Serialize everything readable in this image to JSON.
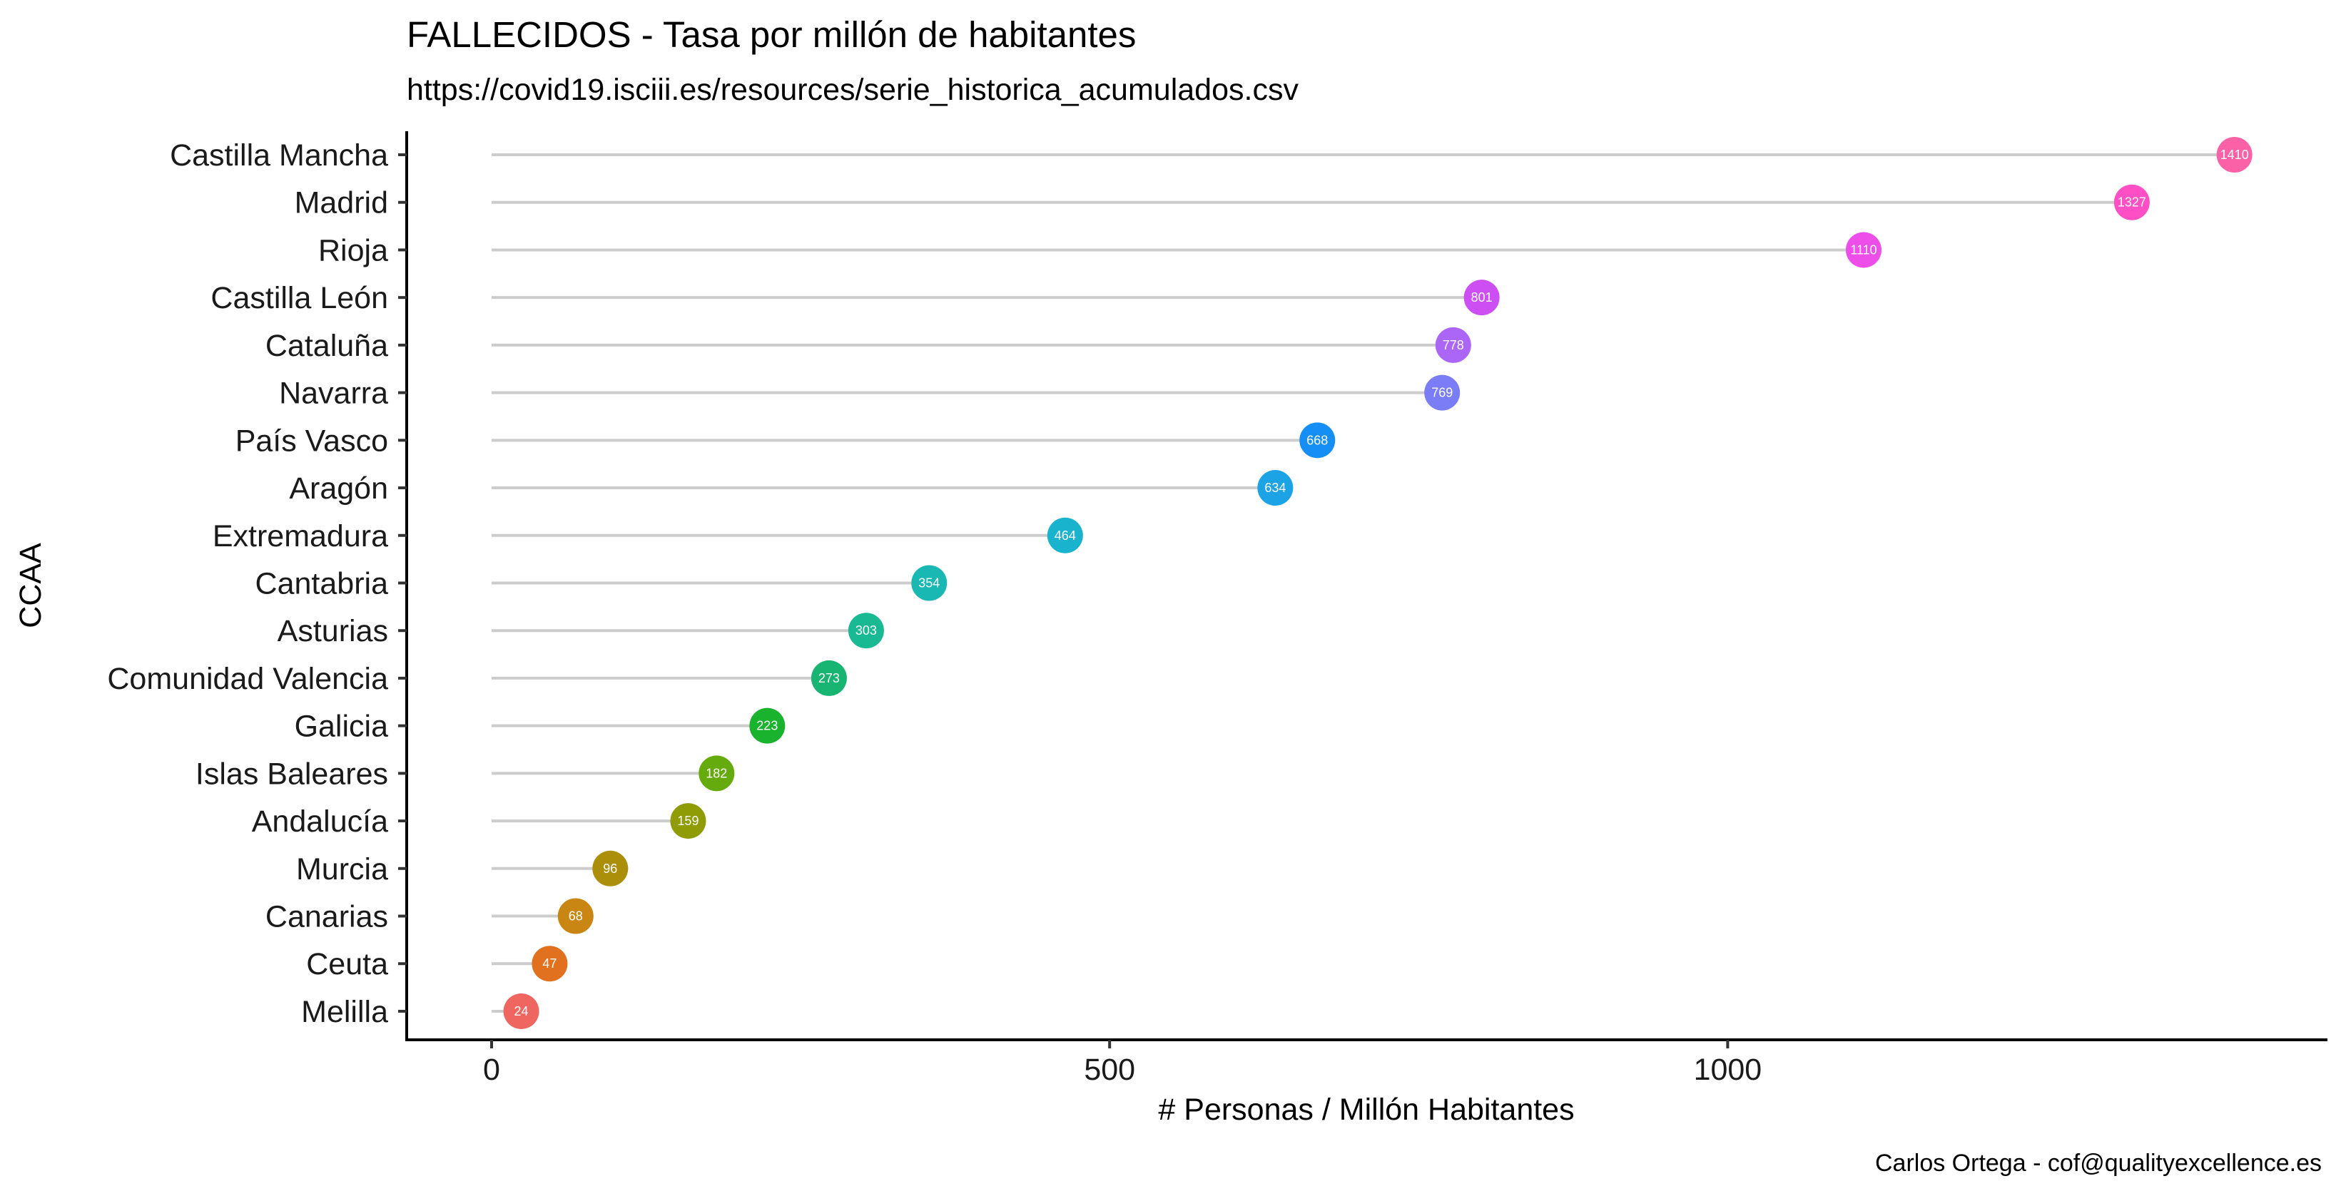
{
  "chart_data": {
    "type": "lollipop",
    "title": "FALLECIDOS - Tasa por millón de habitantes",
    "subtitle": "https://covid19.isciii.es/resources/serie_historica_acumulados.csv",
    "xlabel": "# Personas / Millón Habitantes",
    "ylabel": "CCAA",
    "caption": "Carlos Ortega - cof@qualityexcellence.es",
    "xlim": [
      -70,
      1480
    ],
    "x_ticks": [
      0,
      500,
      1000
    ],
    "grid": false,
    "legend": "none",
    "categories": [
      "Castilla Mancha",
      "Madrid",
      "Rioja",
      "Castilla León",
      "Cataluña",
      "Navarra",
      "País Vasco",
      "Aragón",
      "Extremadura",
      "Cantabria",
      "Asturias",
      "Comunidad Valencia",
      "Galicia",
      "Islas Baleares",
      "Andalucía",
      "Murcia",
      "Canarias",
      "Ceuta",
      "Melilla"
    ],
    "values": [
      1410,
      1327,
      1110,
      801,
      778,
      769,
      668,
      634,
      464,
      354,
      303,
      273,
      223,
      182,
      159,
      96,
      68,
      47,
      24
    ],
    "colors": [
      "#fb61a6",
      "#ff4fc4",
      "#ed4de9",
      "#cd4ff4",
      "#ab65f7",
      "#7a7df6",
      "#158ef5",
      "#1ba3e5",
      "#1ab3cd",
      "#1ab8b2",
      "#19b994",
      "#18b572",
      "#1ab32d",
      "#66ab0d",
      "#8f9c06",
      "#ab8f0a",
      "#c98612",
      "#e1701f",
      "#ef6660"
    ]
  }
}
